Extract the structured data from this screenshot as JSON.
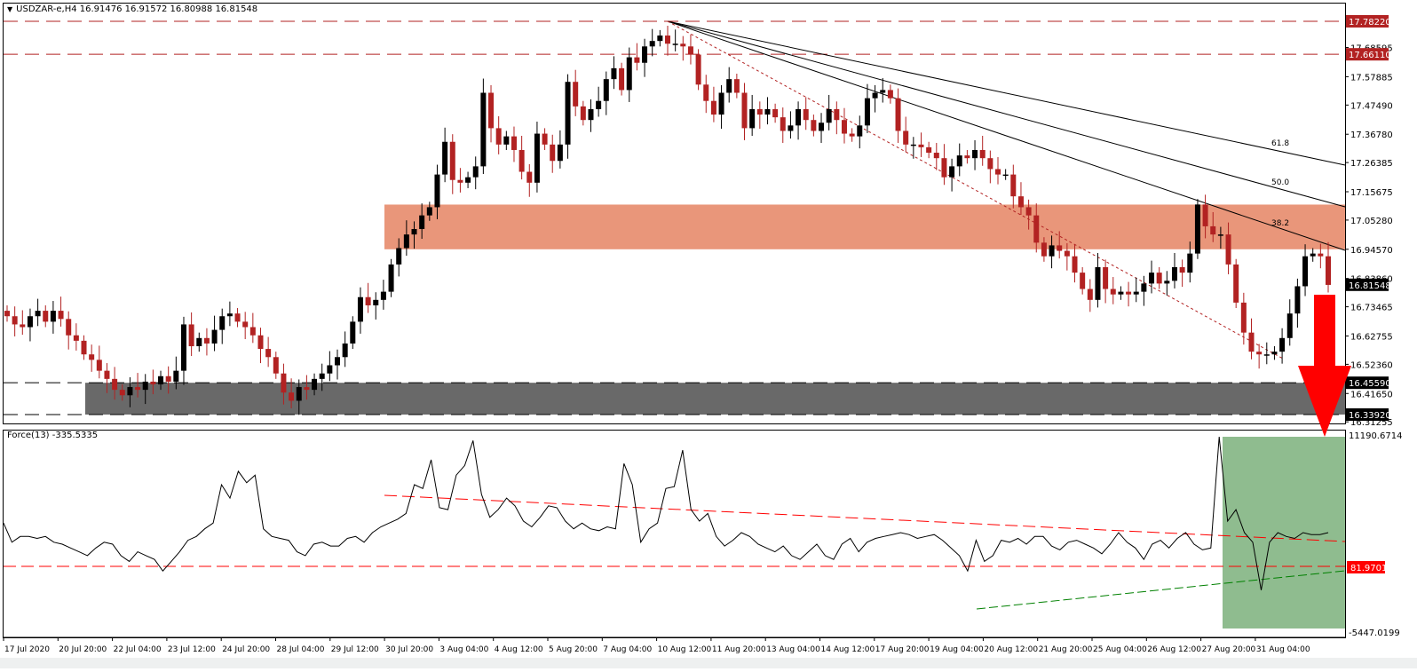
{
  "header": {
    "arrow_glyph": "▼",
    "title": "USDZAR-e,H4  16.91476 16.91572 16.80988 16.81548"
  },
  "indicator": {
    "label": "Force(13) -335.5335",
    "max_label": "11190.6714",
    "min_label": "-5447.0199",
    "level_label": "81.9701"
  },
  "colors": {
    "bull": "#000000",
    "bear": "#b22222",
    "resistance_zone": "#e9967a",
    "support_zone": "#696969",
    "level_line": "#b22222",
    "highlight_zone": "#8fbc8f",
    "arrow": "#ff0000",
    "force_red": "#ff0000",
    "force_green": "#008000"
  },
  "chart_data": [
    {
      "type": "candlestick",
      "title": "USDZAR-e,H4",
      "ohlc_header": {
        "open": 16.91476,
        "high": 16.91572,
        "low": 16.80988,
        "close": 16.81548
      },
      "y_ticks": [
        "17.68595",
        "17.57885",
        "17.47490",
        "17.36780",
        "17.26385",
        "17.15675",
        "17.05280",
        "16.94570",
        "16.83860",
        "16.73465",
        "16.62755",
        "16.52360",
        "16.41650",
        "16.31255"
      ],
      "price_labels": [
        {
          "value": "17.78220",
          "style": "level"
        },
        {
          "value": "17.66110",
          "style": "level"
        },
        {
          "value": "16.81548",
          "style": "current"
        },
        {
          "value": "16.45590",
          "style": "zone"
        },
        {
          "value": "16.33920",
          "style": "zone"
        }
      ],
      "x_ticks": [
        "17 Jul 2020",
        "20 Jul 20:00",
        "22 Jul 04:00",
        "23 Jul 12:00",
        "24 Jul 20:00",
        "28 Jul 04:00",
        "29 Jul 12:00",
        "30 Jul 20:00",
        "3 Aug 04:00",
        "4 Aug 12:00",
        "5 Aug 20:00",
        "7 Aug 04:00",
        "10 Aug 12:00",
        "11 Aug 20:00",
        "13 Aug 04:00",
        "14 Aug 12:00",
        "17 Aug 20:00",
        "19 Aug 04:00",
        "20 Aug 12:00",
        "21 Aug 20:00",
        "25 Aug 04:00",
        "26 Aug 12:00",
        "27 Aug 20:00",
        "31 Aug 04:00"
      ],
      "horizontal_levels": [
        17.7822,
        17.6611
      ],
      "resistance_zone": [
        16.9457,
        17.1097
      ],
      "support_zone": [
        16.3392,
        16.4559
      ],
      "fibonacci_fan": {
        "origin_price": 17.7822,
        "levels": [
          "38.2",
          "50.0",
          "61.8"
        ]
      },
      "candles_close": [
        16.7,
        16.67,
        16.66,
        16.7,
        16.72,
        16.68,
        16.72,
        16.69,
        16.63,
        16.61,
        16.56,
        16.54,
        16.5,
        16.47,
        16.43,
        16.41,
        16.44,
        16.43,
        16.46,
        16.45,
        16.48,
        16.46,
        16.5,
        16.67,
        16.59,
        16.62,
        16.6,
        16.65,
        16.7,
        16.71,
        16.68,
        16.66,
        16.63,
        16.58,
        16.55,
        16.49,
        16.42,
        16.39,
        16.44,
        16.43,
        16.47,
        16.49,
        16.52,
        16.55,
        16.6,
        16.68,
        16.77,
        16.74,
        16.76,
        16.79,
        16.89,
        16.95,
        17.0,
        17.02,
        17.07,
        17.1,
        17.22,
        17.34,
        17.2,
        17.19,
        17.21,
        17.25,
        17.52,
        17.39,
        17.33,
        17.36,
        17.31,
        17.23,
        17.19,
        17.37,
        17.33,
        17.27,
        17.33,
        17.56,
        17.47,
        17.42,
        17.46,
        17.49,
        17.57,
        17.61,
        17.53,
        17.65,
        17.63,
        17.69,
        17.71,
        17.73,
        17.7,
        17.7,
        17.69,
        17.66,
        17.55,
        17.49,
        17.44,
        17.52,
        17.57,
        17.52,
        17.39,
        17.46,
        17.44,
        17.46,
        17.43,
        17.38,
        17.4,
        17.46,
        17.42,
        17.38,
        17.41,
        17.46,
        17.42,
        17.37,
        17.36,
        17.4,
        17.5,
        17.52,
        17.53,
        17.5,
        17.38,
        17.33,
        17.33,
        17.32,
        17.3,
        17.28,
        17.21,
        17.25,
        17.29,
        17.28,
        17.31,
        17.28,
        17.24,
        17.22,
        17.22,
        17.14,
        17.1,
        17.07,
        16.97,
        16.92,
        16.96,
        16.94,
        16.92,
        16.86,
        16.8,
        16.76,
        16.88,
        16.8,
        16.78,
        16.79,
        16.78,
        16.79,
        16.82,
        16.86,
        16.82,
        16.83,
        16.88,
        16.86,
        16.93,
        17.11,
        17.03,
        17.0,
        17.0,
        16.89,
        16.75,
        16.64,
        16.57,
        16.56,
        16.56,
        16.57,
        16.62,
        16.71,
        16.81,
        16.92,
        16.93,
        16.92,
        16.815
      ]
    },
    {
      "type": "line",
      "title": "Force(13)",
      "last_value": -335.5335,
      "ylim": [
        -5447.0199,
        11190.6714
      ],
      "reference_level": 81.9701,
      "values_norm": [
        0.55,
        0.45,
        0.48,
        0.48,
        0.47,
        0.48,
        0.45,
        0.44,
        0.42,
        0.4,
        0.38,
        0.42,
        0.45,
        0.44,
        0.38,
        0.35,
        0.4,
        0.38,
        0.36,
        0.3,
        0.35,
        0.4,
        0.46,
        0.48,
        0.52,
        0.55,
        0.75,
        0.68,
        0.82,
        0.76,
        0.8,
        0.52,
        0.48,
        0.47,
        0.46,
        0.4,
        0.38,
        0.44,
        0.45,
        0.43,
        0.43,
        0.47,
        0.48,
        0.45,
        0.5,
        0.53,
        0.55,
        0.57,
        0.6,
        0.75,
        0.73,
        0.88,
        0.63,
        0.62,
        0.8,
        0.85,
        0.98,
        0.7,
        0.58,
        0.62,
        0.68,
        0.64,
        0.56,
        0.53,
        0.58,
        0.64,
        0.63,
        0.56,
        0.52,
        0.55,
        0.52,
        0.51,
        0.53,
        0.52,
        0.86,
        0.75,
        0.45,
        0.52,
        0.55,
        0.73,
        0.74,
        0.93,
        0.62,
        0.56,
        0.6,
        0.48,
        0.43,
        0.46,
        0.5,
        0.48,
        0.44,
        0.42,
        0.4,
        0.43,
        0.38,
        0.36,
        0.4,
        0.44,
        0.38,
        0.36,
        0.44,
        0.47,
        0.4,
        0.45,
        0.47,
        0.48,
        0.49,
        0.5,
        0.49,
        0.47,
        0.48,
        0.49,
        0.46,
        0.42,
        0.38,
        0.3,
        0.46,
        0.35,
        0.38,
        0.46,
        0.45,
        0.47,
        0.44,
        0.48,
        0.48,
        0.43,
        0.41,
        0.45,
        0.46,
        0.44,
        0.42,
        0.39,
        0.44,
        0.5,
        0.45,
        0.42,
        0.36,
        0.44,
        0.46,
        0.42,
        0.47,
        0.5,
        0.44,
        0.41,
        0.42,
        1.0,
        0.56,
        0.62,
        0.5,
        0.45,
        0.2,
        0.45,
        0.5,
        0.48,
        0.47,
        0.5,
        0.49,
        0.49,
        0.5
      ]
    }
  ],
  "annotations": {
    "fib_labels": [
      "38.2",
      "50.0",
      "61.8"
    ],
    "arrow": "down"
  }
}
